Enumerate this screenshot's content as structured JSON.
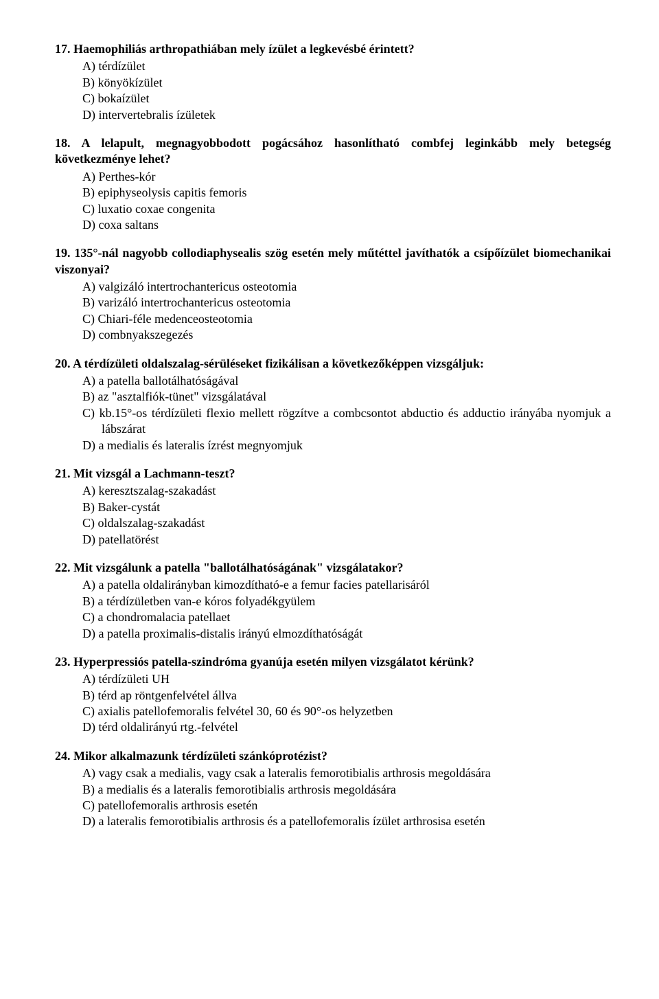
{
  "questions": [
    {
      "number": "17.",
      "text": "Haemophiliás arthropathiában mely ízület a legkevésbé érintett?",
      "options": [
        "A) térdízület",
        "B) könyökízület",
        "C) bokaízület",
        "D) intervertebralis ízületek"
      ]
    },
    {
      "number": "18.",
      "text": "A lelapult, megnagyobbodott pogácsához hasonlítható combfej leginkább mely betegség következménye lehet?",
      "options": [
        "A) Perthes-kór",
        "B) epiphyseolysis capitis femoris",
        "C) luxatio coxae congenita",
        "D) coxa saltans"
      ]
    },
    {
      "number": "19.",
      "text": "135°-nál nagyobb collodiaphysealis szög esetén mely műtéttel javíthatók a csípőízület biomechanikai viszonyai?",
      "options": [
        "A) valgizáló intertrochantericus osteotomia",
        "B) varizáló intertrochantericus osteotomia",
        "C) Chiari-féle medenceosteotomia",
        "D) combnyakszegezés"
      ]
    },
    {
      "number": "20.",
      "text": "A térdízületi oldalszalag-sérüléseket fizikálisan a következőképpen vizsgáljuk:",
      "options": [
        "A) a patella ballotálhatóságával",
        "B) az \"asztalfiók-tünet\" vizsgálatával",
        "C) kb.15°-os térdízületi flexio mellett rögzítve a combcsontot abductio és adductio irányába nyomjuk a lábszárat",
        "D) a medialis és lateralis ízrést megnyomjuk"
      ]
    },
    {
      "number": "21.",
      "text": "Mit vizsgál a Lachmann-teszt?",
      "options": [
        "A) keresztszalag-szakadást",
        "B) Baker-cystát",
        "C) oldalszalag-szakadást",
        "D) patellatörést"
      ]
    },
    {
      "number": "22.",
      "text": "Mit vizsgálunk a patella \"ballotálhatóságának\" vizsgálatakor?",
      "options": [
        "A) a patella oldalirányban kimozdítható-e a femur facies patellarisáról",
        "B) a térdízületben van-e kóros folyadékgyülem",
        "C) a chondromalacia patellaet",
        "D) a patella proximalis-distalis irányú elmozdíthatóságát"
      ]
    },
    {
      "number": "23.",
      "text": "Hyperpressiós patella-szindróma gyanúja esetén milyen vizsgálatot kérünk?",
      "options": [
        "A) térdízületi UH",
        "B) térd ap röntgenfelvétel állva",
        "C) axialis patellofemoralis felvétel 30, 60 és 90°-os helyzetben",
        "D) térd oldalirányú rtg.-felvétel"
      ]
    },
    {
      "number": "24.",
      "text": "Mikor alkalmazunk térdízületi szánkóprotézist?",
      "options": [
        "A) vagy csak a medialis, vagy csak a lateralis femorotibialis arthrosis megoldására",
        "B) a medialis és a lateralis femorotibialis arthrosis megoldására",
        "C) patellofemoralis arthrosis esetén",
        "D) a lateralis femorotibialis arthrosis és a patellofemoralis ízület arthrosisa esetén"
      ]
    }
  ]
}
